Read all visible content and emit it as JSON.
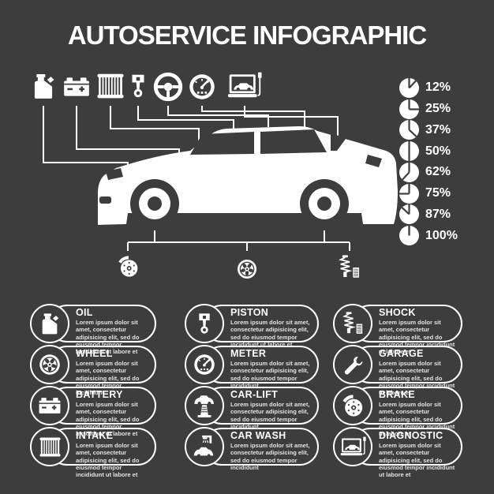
{
  "title": "AUTOSERVICE INFOGRAPHIC",
  "colors": {
    "background": "#3d3d3d",
    "foreground": "#ffffff",
    "body_text": "#e2e2e2"
  },
  "top_icons": [
    {
      "name": "oil-can-icon"
    },
    {
      "name": "battery-icon"
    },
    {
      "name": "air-filter-icon"
    },
    {
      "name": "piston-icon"
    },
    {
      "name": "steering-wheel-icon"
    },
    {
      "name": "speedometer-icon"
    },
    {
      "name": "laptop-diagnostic-icon"
    }
  ],
  "under_car_icons": [
    {
      "name": "brake-disc-icon"
    },
    {
      "name": "wheel-icon"
    },
    {
      "name": "shock-absorber-icon"
    }
  ],
  "chart_data": {
    "type": "pie",
    "title": "",
    "legend_position": "right-column",
    "series": [
      {
        "label": "12%",
        "percent": 12
      },
      {
        "label": "25%",
        "percent": 25
      },
      {
        "label": "37%",
        "percent": 37
      },
      {
        "label": "50%",
        "percent": 50
      },
      {
        "label": "62%",
        "percent": 62
      },
      {
        "label": "75%",
        "percent": 75
      },
      {
        "label": "87%",
        "percent": 87
      },
      {
        "label": "100%",
        "percent": 100
      }
    ]
  },
  "pies": [
    {
      "percent": 12,
      "label": "12%"
    },
    {
      "percent": 25,
      "label": "25%"
    },
    {
      "percent": 37,
      "label": "37%"
    },
    {
      "percent": 50,
      "label": "50%"
    },
    {
      "percent": 62,
      "label": "62%"
    },
    {
      "percent": 75,
      "label": "75%"
    },
    {
      "percent": 87,
      "label": "87%"
    },
    {
      "percent": 100,
      "label": "100%"
    }
  ],
  "service_columns": [
    [
      {
        "title": "OIL",
        "icon": "oil-can-icon",
        "body": "Lorem ipsum dolor sit amet, consectetur adipisicing elit, sed do eiusmod tempor incididunt ut labore et"
      },
      {
        "title": "WHEEL",
        "icon": "wheel-icon",
        "body": "Lorem ipsum dolor sit amet, consectetur adipisicing elit, sed do eiusmod tempor incididunt"
      },
      {
        "title": "BATTERY",
        "icon": "battery-icon",
        "body": "Lorem ipsum dolor sit amet, consectetur adipisicing elit, sed do eiusmod tempor incididunt ut labore et"
      },
      {
        "title": "INTAKE",
        "icon": "air-filter-icon",
        "body": "Lorem ipsum dolor sit amet, consectetur adipisicing elit, sed do eiusmod tempor incididunt ut labore et"
      }
    ],
    [
      {
        "title": "PISTON",
        "icon": "piston-icon",
        "body": "Lorem ipsum dolor sit amet, consectetur adipisicing elit, sed do eiusmod tempor incididunt ut labore et"
      },
      {
        "title": "METER",
        "icon": "speedometer-icon",
        "body": "Lorem ipsum dolor sit amet, consectetur adipisicing elit, sed do eiusmod tempor incididunt"
      },
      {
        "title": "CAR-LIFT",
        "icon": "car-lift-icon",
        "body": "Lorem ipsum dolor sit amet, consectetur adipisicing elit, sed do eiusmod tempor incididunt"
      },
      {
        "title": "CAR WASH",
        "icon": "car-wash-icon",
        "body": "Lorem ipsum dolor sit amet, consectetur adipisicing elit, sed do eiusmod tempor incididunt"
      }
    ],
    [
      {
        "title": "SHOCK",
        "icon": "shock-absorber-icon",
        "body": "Lorem ipsum dolor sit amet, consectetur adipisicing elit, sed do eiusmod tempor incididunt ut labore et"
      },
      {
        "title": "GARAGE",
        "icon": "wrench-icon",
        "body": "Lorem ipsum dolor sit amet, consectetur adipisicing elit, sed do eiusmod tempor incididunt ut labore et"
      },
      {
        "title": "BRAKE",
        "icon": "brake-disc-icon",
        "body": "Lorem ipsum dolor sit amet, consectetur adipisicing elit, sed do eiusmod tempor incididunt ut labore et"
      },
      {
        "title": "DIAGNOSTIC",
        "icon": "laptop-diagnostic-icon",
        "body": "Lorem ipsum dolor sit amet, consectetur adipisicing elit, sed do eiusmod tempor incididunt ut labore et"
      }
    ]
  ]
}
